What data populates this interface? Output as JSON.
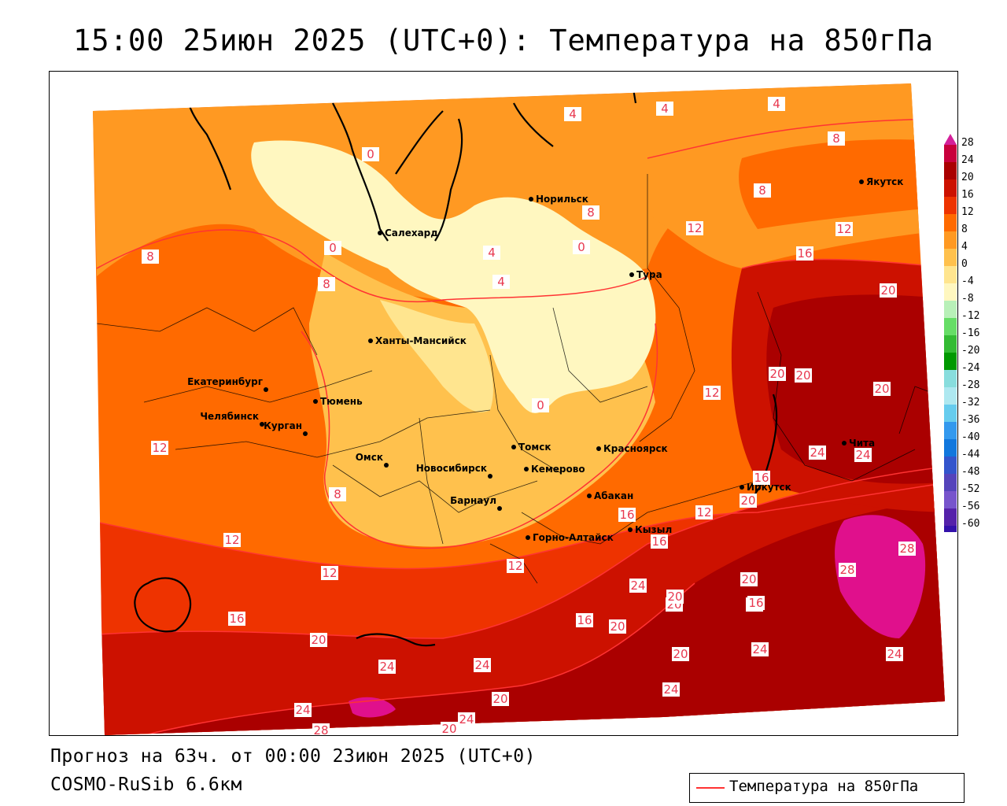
{
  "title": "15:00 25июн 2025 (UTC+0): Температура на 850гПа",
  "forecast": "Прогноз на 63ч. от 00:00 23июн 2025 (UTC+0)",
  "model": "COSMO-RuSib 6.6км",
  "legend": {
    "label": "Температура на 850гПа",
    "line_color": "#ff3333"
  },
  "colorbar": {
    "levels": [
      "28",
      "24",
      "20",
      "16",
      "12",
      "8",
      "4",
      "0",
      "-4",
      "-8",
      "-12",
      "-16",
      "-20",
      "-24",
      "-28",
      "-32",
      "-36",
      "-40",
      "-44",
      "-48",
      "-52",
      "-56",
      "-60"
    ],
    "colors": [
      "#c8003c",
      "#aa0000",
      "#cc1100",
      "#ee3300",
      "#ff6a00",
      "#ff9922",
      "#ffc14d",
      "#ffe58f",
      "#fff7c0",
      "#b8f0b8",
      "#66dd66",
      "#33bb33",
      "#009900",
      "#88dddd",
      "#aee8f0",
      "#66ccee",
      "#3399ee",
      "#1177dd",
      "#3355cc",
      "#5544bb",
      "#7755cc",
      "#5522aa",
      "#3311aa"
    ]
  },
  "cities": [
    {
      "name": "Салехард"
    },
    {
      "name": "Норильск"
    },
    {
      "name": "Якутск"
    },
    {
      "name": "Тура"
    },
    {
      "name": "Ханты-Мансийск"
    },
    {
      "name": "Екатеринбург"
    },
    {
      "name": "Тюмень"
    },
    {
      "name": "Челябинск"
    },
    {
      "name": "Курган"
    },
    {
      "name": "Омск"
    },
    {
      "name": "Новосибирск"
    },
    {
      "name": "Томск"
    },
    {
      "name": "Красноярск"
    },
    {
      "name": "Кемерово"
    },
    {
      "name": "Барнаул"
    },
    {
      "name": "Абакан"
    },
    {
      "name": "Горно-Алтайск"
    },
    {
      "name": "Кызыл"
    },
    {
      "name": "Иркутск"
    },
    {
      "name": "Чита"
    }
  ],
  "contour_labels": [
    "4",
    "4",
    "4",
    "8",
    "0",
    "8",
    "0",
    "4",
    "4",
    "0",
    "8",
    "12",
    "12",
    "16",
    "8",
    "20",
    "20",
    "20",
    "20",
    "8",
    "12",
    "12",
    "24",
    "24",
    "16",
    "12",
    "16",
    "16",
    "12",
    "12",
    "12",
    "16",
    "20",
    "16",
    "24",
    "20",
    "20",
    "16",
    "20",
    "28",
    "28",
    "20",
    "24",
    "24",
    "24",
    "20",
    "24",
    "24",
    "20",
    "24",
    "28",
    "20",
    "24",
    "20",
    "16",
    "0",
    "8"
  ]
}
